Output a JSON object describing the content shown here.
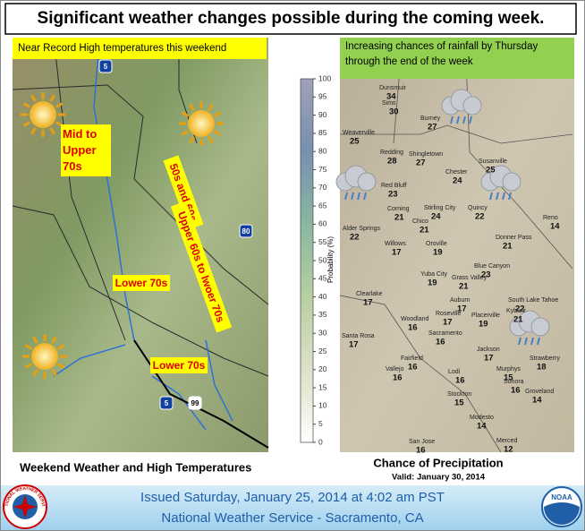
{
  "header": {
    "title": "Significant weather changes possible during the coming week."
  },
  "left_panel": {
    "label": "Near Record High temperatures this weekend",
    "annotations": [
      "Mid to Upper 70s",
      "50s and 60s",
      "Upper 60s to lwoer 70s",
      "Lower 70s",
      "Lower 70s"
    ],
    "highway_shields": [
      "5",
      "80",
      "99",
      "5"
    ],
    "caption": "Weekend Weather and High Temperatures"
  },
  "right_panel": {
    "label": "Increasing chances of rainfall by Thursday through the end of the week",
    "colorbar": {
      "axis_label": "Probability (%)",
      "ticks": [
        0,
        5,
        10,
        15,
        20,
        25,
        30,
        35,
        40,
        45,
        50,
        55,
        60,
        65,
        70,
        75,
        80,
        85,
        90,
        95,
        100
      ]
    },
    "cities": [
      {
        "name": "Dunsmuir",
        "value": 34
      },
      {
        "name": "Sims",
        "value": 30
      },
      {
        "name": "Burney",
        "value": 27
      },
      {
        "name": "Weaverville",
        "value": 25
      },
      {
        "name": "Redding",
        "value": 28
      },
      {
        "name": "Shingletown",
        "value": 27
      },
      {
        "name": "Chester",
        "value": 24
      },
      {
        "name": "Susanville",
        "value": 25
      },
      {
        "name": "Red Bluff",
        "value": 23
      },
      {
        "name": "Corning",
        "value": 21
      },
      {
        "name": "Stirling City",
        "value": 24
      },
      {
        "name": "Quincy",
        "value": 22
      },
      {
        "name": "Alder Springs",
        "value": 22
      },
      {
        "name": "Chico",
        "value": 21
      },
      {
        "name": "Willows",
        "value": 17
      },
      {
        "name": "Oroville",
        "value": 19
      },
      {
        "name": "Reno",
        "value": 14
      },
      {
        "name": "Blue Canyon",
        "value": 23
      },
      {
        "name": "Donner Pass",
        "value": 21
      },
      {
        "name": "Clearlake",
        "value": 17
      },
      {
        "name": "Yuba City",
        "value": 19
      },
      {
        "name": "Grass Valley",
        "value": 21
      },
      {
        "name": "Auburn",
        "value": 17
      },
      {
        "name": "South Lake Tahoe",
        "value": 22
      },
      {
        "name": "Kyburz",
        "value": 21
      },
      {
        "name": "Roseville",
        "value": 17
      },
      {
        "name": "Placerville",
        "value": 19
      },
      {
        "name": "Woodland",
        "value": 16
      },
      {
        "name": "Sacramento",
        "value": 16
      },
      {
        "name": "Santa Rosa",
        "value": 17
      },
      {
        "name": "Jackson",
        "value": 17
      },
      {
        "name": "Strawberry",
        "value": 18
      },
      {
        "name": "Fairfield",
        "value": 16
      },
      {
        "name": "Murphys",
        "value": 15
      },
      {
        "name": "Sonora",
        "value": 16
      },
      {
        "name": "Groveland",
        "value": 14
      },
      {
        "name": "Vallejo",
        "value": 16
      },
      {
        "name": "Lodi",
        "value": 16
      },
      {
        "name": "Stockton",
        "value": 15
      },
      {
        "name": "Modesto",
        "value": 14
      },
      {
        "name": "Merced",
        "value": 12
      },
      {
        "name": "San Jose",
        "value": 16
      }
    ],
    "caption": "Chance of Precipitation",
    "valid": "Valid: January 30, 2014"
  },
  "footer": {
    "issued": "Issued Saturday, January 25, 2014 at  4:02 am PST",
    "office": "National Weather Service - Sacramento, CA",
    "nws_logo": "NATIONAL WEATHER SERVICE",
    "noaa_logo": "NOAA"
  }
}
